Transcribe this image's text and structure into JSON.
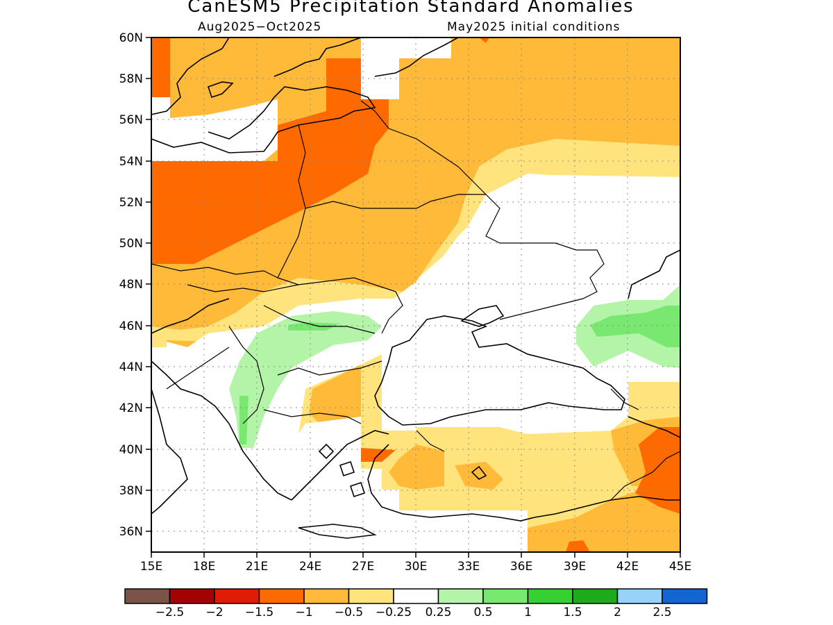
{
  "title": "CanESM5 Precipitation Standard Anomalies",
  "subtitle_left": "Aug2025−Oct2025",
  "subtitle_right": "May2025 initial conditions",
  "lat_ticks": [
    "60N",
    "58N",
    "56N",
    "54N",
    "52N",
    "50N",
    "48N",
    "46N",
    "44N",
    "42N",
    "40N",
    "38N",
    "36N"
  ],
  "lon_ticks": [
    "15E",
    "18E",
    "21E",
    "24E",
    "27E",
    "30E",
    "33E",
    "36E",
    "39E",
    "42E",
    "45E"
  ],
  "colorbar": {
    "colors": [
      "#7b5347",
      "#a40303",
      "#e01b08",
      "#ff6a00",
      "#ffba3a",
      "#ffe47d",
      "#ffffff",
      "#b4f4a8",
      "#78e870",
      "#36d035",
      "#1eaa1c",
      "#96d2fa",
      "#1464d2"
    ],
    "labels": [
      "−2.5",
      "−2",
      "−1.5",
      "−1",
      "−0.5",
      "−0.25",
      "0.25",
      "0.5",
      "1",
      "1.5",
      "2",
      "2.5"
    ]
  }
}
